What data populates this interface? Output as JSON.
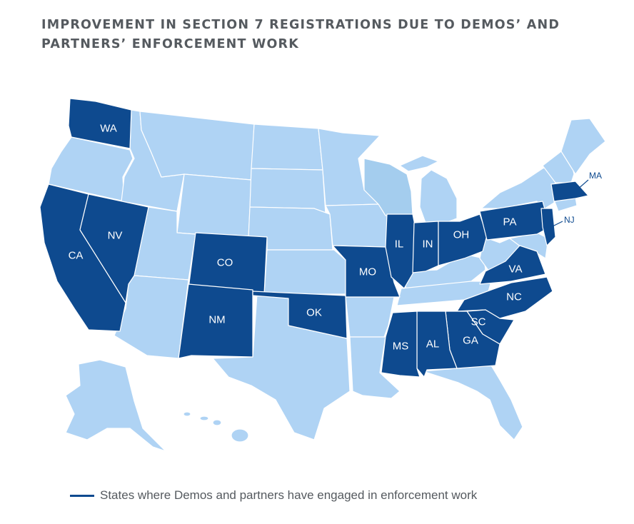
{
  "title": "IMPROVEMENT IN SECTION 7 REGISTRATIONS DUE TO DEMOS’ AND PARTNERS’ ENFORCEMENT WORK",
  "legend": {
    "text": "States where Demos and partners have engaged in enforcement work",
    "color": "#0e4a8f"
  },
  "colors": {
    "engaged": "#0e4a8f",
    "other": "#afd3f4",
    "wisconsin": "#a4cdee"
  },
  "labels": {
    "WA": "WA",
    "CA": "CA",
    "NV": "NV",
    "CO": "CO",
    "NM": "NM",
    "OK": "OK",
    "MO": "MO",
    "IL": "IL",
    "IN": "IN",
    "OH": "OH",
    "PA": "PA",
    "VA": "VA",
    "NC": "NC",
    "SC": "SC",
    "GA": "GA",
    "AL": "AL",
    "MS": "MS",
    "MA": "MA",
    "NJ": "NJ"
  }
}
